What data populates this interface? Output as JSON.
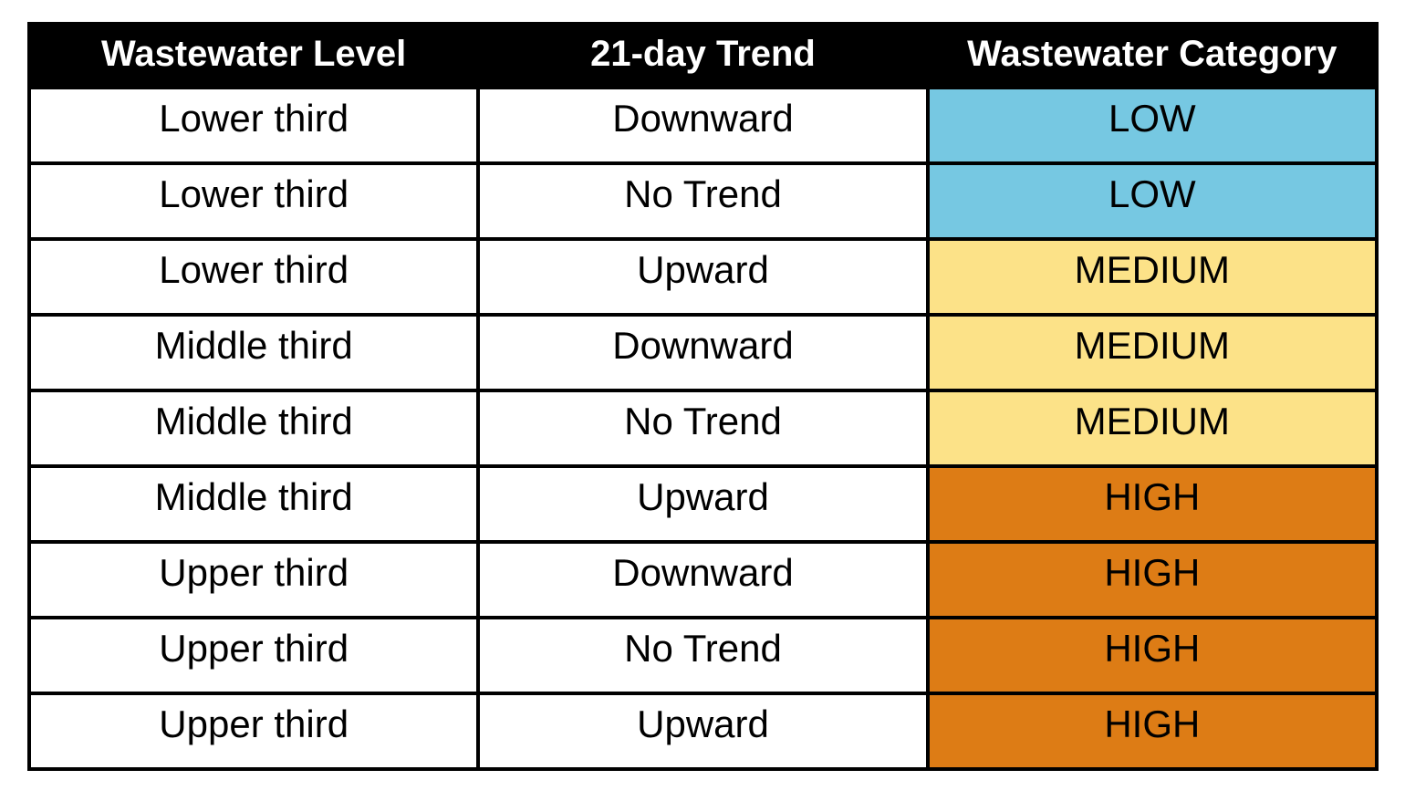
{
  "chart_data": {
    "type": "table",
    "columns": [
      "Wastewater Level",
      "21-day Trend",
      "Wastewater Category"
    ],
    "rows": [
      [
        "Lower third",
        "Downward",
        "LOW"
      ],
      [
        "Lower third",
        "No Trend",
        "LOW"
      ],
      [
        "Lower third",
        "Upward",
        "MEDIUM"
      ],
      [
        "Middle third",
        "Downward",
        "MEDIUM"
      ],
      [
        "Middle third",
        "No Trend",
        "MEDIUM"
      ],
      [
        "Middle third",
        "Upward",
        "HIGH"
      ],
      [
        "Upper third",
        "Downward",
        "HIGH"
      ],
      [
        "Upper third",
        "No Trend",
        "HIGH"
      ],
      [
        "Upper third",
        "Upward",
        "HIGH"
      ]
    ],
    "category_colors": {
      "LOW": "#76C8E2",
      "MEDIUM": "#FCE288",
      "HIGH": "#DD7C15"
    },
    "header_bg": "#000000",
    "header_text_color": "#FFFFFF",
    "cell_text_color": "#000000",
    "border_color": "#000000"
  }
}
